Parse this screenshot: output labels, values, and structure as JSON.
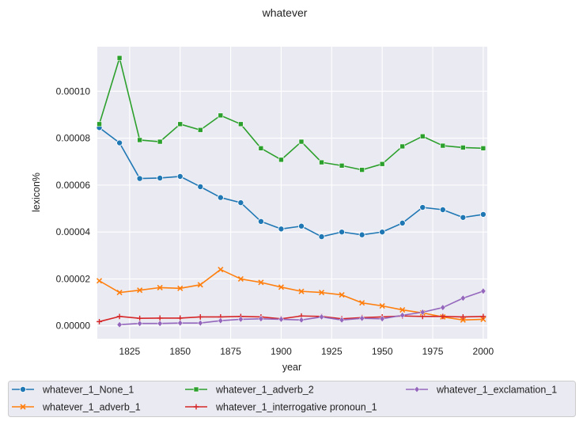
{
  "chart_data": {
    "type": "line",
    "title": "whatever",
    "xlabel": "year",
    "ylabel": "lexicon%",
    "xlim": [
      1809,
      2002
    ],
    "ylim": [
      -5.5e-06,
      0.000119
    ],
    "xticks": [
      1825,
      1850,
      1875,
      1900,
      1925,
      1950,
      1975,
      2000
    ],
    "xtick_labels": [
      "1825",
      "1850",
      "1875",
      "1900",
      "1925",
      "1950",
      "1975",
      "2000"
    ],
    "yticks": [
      0,
      2e-05,
      4e-05,
      6e-05,
      8e-05,
      0.0001
    ],
    "ytick_labels": [
      "0.00000",
      "0.00002",
      "0.00004",
      "0.00006",
      "0.00008",
      "0.00010"
    ],
    "grid": true,
    "legend_position": "bottom",
    "series": [
      {
        "name": "whatever_1_None_1",
        "color": "#1f77b4",
        "marker": "circle",
        "x": [
          1810,
          1820,
          1830,
          1840,
          1850,
          1860,
          1870,
          1880,
          1890,
          1900,
          1910,
          1920,
          1930,
          1940,
          1950,
          1960,
          1970,
          1980,
          1990,
          2000
        ],
        "y": [
          8.45e-05,
          7.8e-05,
          6.28e-05,
          6.3e-05,
          6.37e-05,
          5.93e-05,
          5.47e-05,
          5.25e-05,
          4.45e-05,
          4.13e-05,
          4.25e-05,
          3.8e-05,
          4e-05,
          3.88e-05,
          4e-05,
          4.38e-05,
          5.05e-05,
          4.95e-05,
          4.62e-05,
          4.75e-05
        ]
      },
      {
        "name": "whatever_1_adverb_1",
        "color": "#ff7f0e",
        "marker": "x",
        "x": [
          1810,
          1820,
          1830,
          1840,
          1850,
          1860,
          1870,
          1880,
          1890,
          1900,
          1910,
          1920,
          1930,
          1940,
          1950,
          1960,
          1970,
          1980,
          1990,
          2000
        ],
        "y": [
          1.92e-05,
          1.42e-05,
          1.52e-05,
          1.63e-05,
          1.6e-05,
          1.75e-05,
          2.4e-05,
          2e-05,
          1.85e-05,
          1.65e-05,
          1.47e-05,
          1.42e-05,
          1.32e-05,
          9.8e-06,
          8.5e-06,
          6.8e-06,
          5.5e-06,
          3.8e-06,
          2.5e-06,
          2.8e-06
        ]
      },
      {
        "name": "whatever_1_adverb_2",
        "color": "#2ca02c",
        "marker": "square",
        "x": [
          1810,
          1820,
          1830,
          1840,
          1850,
          1860,
          1870,
          1880,
          1890,
          1900,
          1910,
          1920,
          1930,
          1940,
          1950,
          1960,
          1970,
          1980,
          1990,
          2000
        ],
        "y": [
          8.6e-05,
          0.0001142,
          7.92e-05,
          7.85e-05,
          8.6e-05,
          8.35e-05,
          8.97e-05,
          8.6e-05,
          7.57e-05,
          7.08e-05,
          7.85e-05,
          6.97e-05,
          6.83e-05,
          6.65e-05,
          6.9e-05,
          7.65e-05,
          8.08e-05,
          7.68e-05,
          7.6e-05,
          7.57e-05
        ]
      },
      {
        "name": "whatever_1_interrogative pronoun_1",
        "color": "#d62728",
        "marker": "plus",
        "x": [
          1810,
          1820,
          1830,
          1840,
          1850,
          1860,
          1870,
          1880,
          1890,
          1900,
          1910,
          1920,
          1930,
          1940,
          1950,
          1960,
          1970,
          1980,
          1990,
          2000
        ],
        "y": [
          1.8e-06,
          4e-06,
          3.2e-06,
          3.3e-06,
          3.3e-06,
          3.8e-06,
          3.8e-06,
          4e-06,
          3.8e-06,
          3e-06,
          4.2e-06,
          4e-06,
          3e-06,
          3.5e-06,
          3.8e-06,
          4.2e-06,
          4e-06,
          4e-06,
          3.8e-06,
          4e-06
        ]
      },
      {
        "name": "whatever_1_exclamation_1",
        "color": "#9467bd",
        "marker": "diamond",
        "x": [
          1820,
          1830,
          1840,
          1850,
          1860,
          1870,
          1880,
          1890,
          1900,
          1910,
          1920,
          1930,
          1940,
          1950,
          1960,
          1970,
          1980,
          1990,
          2000
        ],
        "y": [
          5e-07,
          1e-06,
          1e-06,
          1.2e-06,
          1.2e-06,
          2.2e-06,
          2.8e-06,
          3e-06,
          2.8e-06,
          2.5e-06,
          3.8e-06,
          2.5e-06,
          3.2e-06,
          3e-06,
          4.5e-06,
          5.8e-06,
          7.8e-06,
          1.18e-05,
          1.48e-05
        ]
      }
    ]
  }
}
